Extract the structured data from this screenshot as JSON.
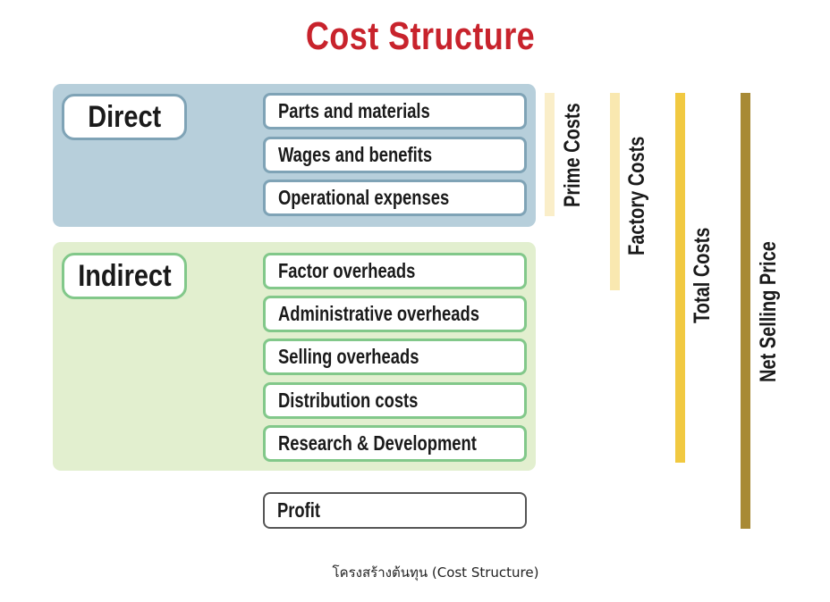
{
  "title": "Cost Structure",
  "groups": {
    "direct": {
      "label": "Direct",
      "items": [
        "Parts and materials",
        "Wages and benefits",
        "Operational expenses"
      ]
    },
    "indirect": {
      "label": "Indirect",
      "items": [
        "Factor overheads",
        "Administrative overheads",
        "Selling overheads",
        "Distribution costs",
        "Research & Development"
      ]
    }
  },
  "profit": "Profit",
  "cost_levels": [
    {
      "label": "Prime Costs",
      "color": "#faeec9"
    },
    {
      "label": "Factory Costs",
      "color": "#f9e8b0"
    },
    {
      "label": "Total Costs",
      "color": "#f1c941"
    },
    {
      "label": "Net Selling Price",
      "color": "#a88a35"
    }
  ],
  "caption": "โครงสร้างต้นทุน (Cost Structure)"
}
